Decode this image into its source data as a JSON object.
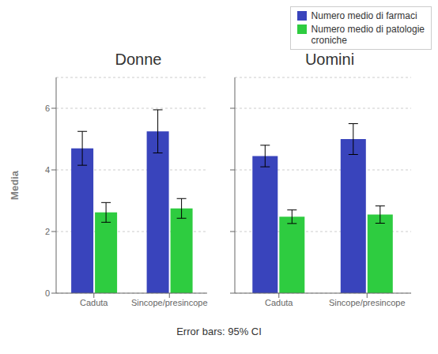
{
  "chart_data": [
    {
      "type": "bar",
      "title": "Donne",
      "ylabel": "Media",
      "categories": [
        "Caduta",
        "Sincope/presincope"
      ],
      "series": [
        {
          "name": "Numero medio di farmaci",
          "color": "#3944bc",
          "values": [
            4.7,
            5.25
          ],
          "errors": [
            0.55,
            0.7
          ]
        },
        {
          "name": "Numero medio di patologie\ncroniche",
          "color": "#2ecc40",
          "values": [
            2.62,
            2.75
          ],
          "errors": [
            0.32,
            0.32
          ]
        }
      ],
      "ylim": [
        0,
        7
      ],
      "yticks": [
        0,
        2,
        4,
        6
      ],
      "grid": true,
      "annotations": [
        "Error bars: 95% CI"
      ]
    },
    {
      "type": "bar",
      "title": "Uomini",
      "categories": [
        "Caduta",
        "Sincope/presincope"
      ],
      "series": [
        {
          "name": "Numero medio di farmaci",
          "color": "#3944bc",
          "values": [
            4.45,
            5.0
          ],
          "errors": [
            0.35,
            0.5
          ]
        },
        {
          "name": "Numero medio di patologie\ncroniche",
          "color": "#2ecc40",
          "values": [
            2.48,
            2.55
          ],
          "errors": [
            0.22,
            0.28
          ]
        }
      ],
      "ylim": [
        0,
        7
      ],
      "yticks": [
        0,
        2,
        4,
        6
      ],
      "grid": true,
      "tick_labels": "x",
      "legend": "upper right"
    }
  ]
}
